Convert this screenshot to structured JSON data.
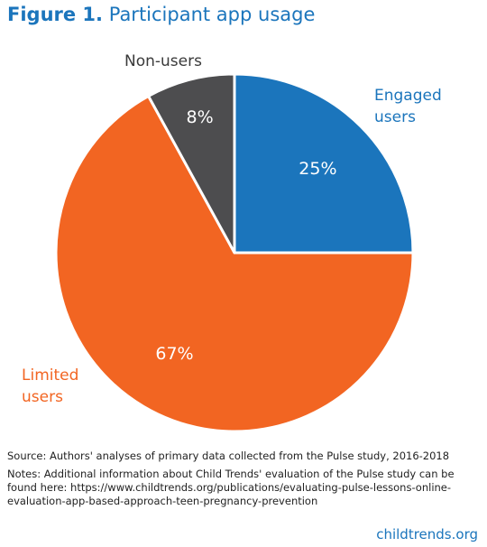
{
  "chart_data": {
    "type": "pie",
    "figure_label": "Figure 1.",
    "title": "Participant app usage",
    "categories": [
      "Engaged users",
      "Limited users",
      "Non-users"
    ],
    "values": [
      25,
      67,
      8
    ],
    "value_labels": [
      "25%",
      "67%",
      "8%"
    ],
    "colors": [
      "#1b75bc",
      "#f26522",
      "#4d4d4f"
    ],
    "label_colors": [
      "#1b75bc",
      "#f26522",
      "#3a3a3a"
    ],
    "source": "Source: Authors' analyses of primary data collected from the Pulse study, 2016-2018",
    "notes": "Notes: Additional information about Child Trends' evaluation of the Pulse study can be found here: https://www.childtrends.org/publications/evaluating-pulse-lessons-online-evaluation-app-based-approach-teen-pregnancy-prevention",
    "credit": "childtrends.org"
  }
}
